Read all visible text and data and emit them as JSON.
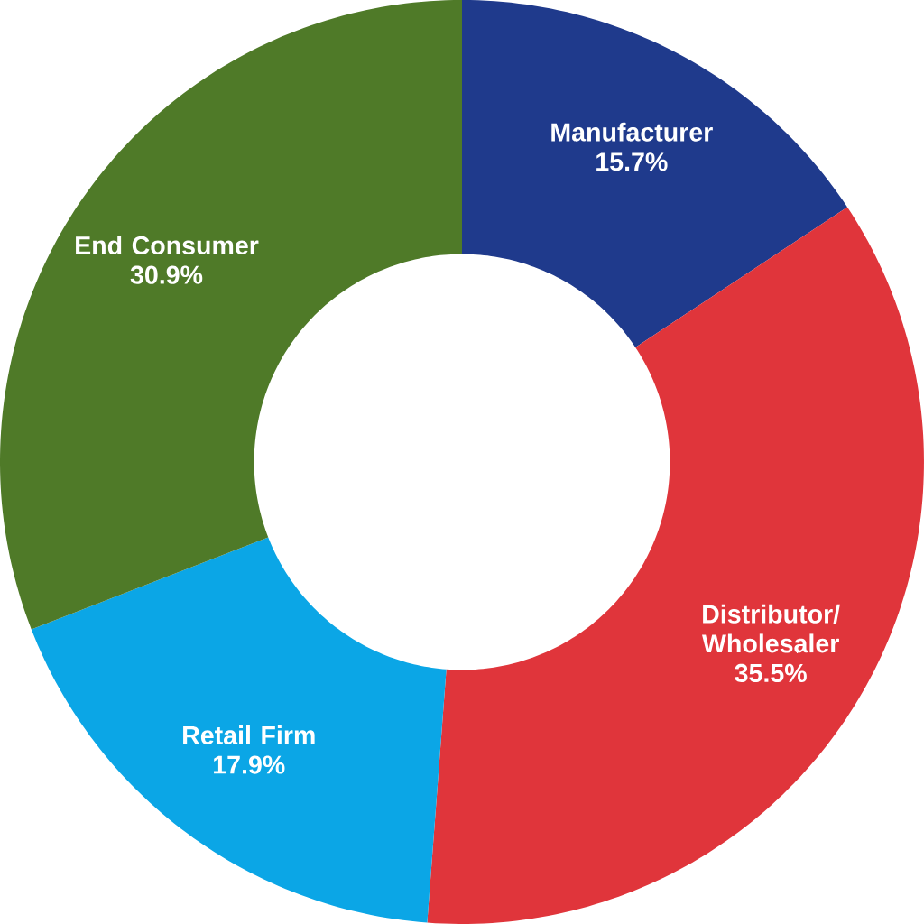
{
  "chart_data": {
    "type": "donut",
    "categories": [
      "Manufacturer",
      "Distributor/ Wholesaler",
      "Retail Firm",
      "End Consumer"
    ],
    "values": [
      15.7,
      35.5,
      17.9,
      30.9
    ],
    "colors": [
      "#1f3a8c",
      "#e0353b",
      "#0ba6e6",
      "#4f7a28"
    ],
    "value_labels": [
      "15.7%",
      "35.5%",
      "17.9%",
      "30.9%"
    ]
  }
}
